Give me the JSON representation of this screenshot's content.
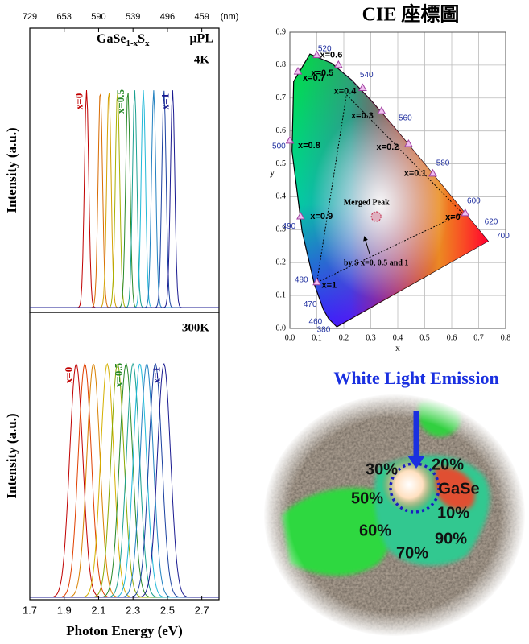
{
  "chart_data": [
    {
      "type": "line",
      "sample": [
        "GaSe",
        "1-x",
        "S",
        "x"
      ],
      "method": "μPL",
      "temperature": "4K",
      "ylabel": "Intensity (a.u.)",
      "xlim": [
        1.7,
        2.8
      ],
      "x2ticks": [
        {
          "value": 1.7,
          "label": "729"
        },
        {
          "value": 1.9,
          "label": "653"
        },
        {
          "value": 2.1,
          "label": "590"
        },
        {
          "value": 2.3,
          "label": "539"
        },
        {
          "value": 2.5,
          "label": "496"
        },
        {
          "value": 2.7,
          "label": "459"
        }
      ],
      "x2unit": "(nm)",
      "series": [
        {
          "color": "#c00000",
          "peak": 2.03,
          "fwhm": 0.03,
          "label": "x=0"
        },
        {
          "color": "#d86a00",
          "peak": 2.11,
          "fwhm": 0.03
        },
        {
          "color": "#d4a000",
          "peak": 2.16,
          "fwhm": 0.03
        },
        {
          "color": "#a8b000",
          "peak": 2.21,
          "fwhm": 0.03
        },
        {
          "color": "#2a8a2a",
          "peak": 2.27,
          "fwhm": 0.03,
          "label": "x=0.5"
        },
        {
          "color": "#1aa090",
          "peak": 2.31,
          "fwhm": 0.03
        },
        {
          "color": "#20b8d8",
          "peak": 2.36,
          "fwhm": 0.03
        },
        {
          "color": "#2080c0",
          "peak": 2.42,
          "fwhm": 0.03
        },
        {
          "color": "#1a40a0",
          "peak": 2.48,
          "fwhm": 0.03
        },
        {
          "color": "#1a1a90",
          "peak": 2.53,
          "fwhm": 0.03,
          "label": "x=1"
        }
      ]
    },
    {
      "type": "line",
      "temperature": "300K",
      "ylabel": "Intensity (a.u.)",
      "xlabel": "Photon Energy (eV)",
      "xlim": [
        1.7,
        2.8
      ],
      "xticks": [
        1.7,
        1.9,
        2.1,
        2.3,
        2.5,
        2.7
      ],
      "series": [
        {
          "color": "#c00000",
          "peak": 1.97,
          "fwhm": 0.09,
          "label": "x=0"
        },
        {
          "color": "#e04000",
          "peak": 2.02,
          "fwhm": 0.09
        },
        {
          "color": "#d88000",
          "peak": 2.07,
          "fwhm": 0.09
        },
        {
          "color": "#d4b000",
          "peak": 2.15,
          "fwhm": 0.09
        },
        {
          "color": "#8aa800",
          "peak": 2.21,
          "fwhm": 0.09
        },
        {
          "color": "#2a8a2a",
          "peak": 2.26,
          "fwhm": 0.09,
          "label": "x=0.5"
        },
        {
          "color": "#1aa090",
          "peak": 2.3,
          "fwhm": 0.09
        },
        {
          "color": "#20b8d8",
          "peak": 2.34,
          "fwhm": 0.09
        },
        {
          "color": "#2080c0",
          "peak": 2.38,
          "fwhm": 0.09
        },
        {
          "color": "#1a40a0",
          "peak": 2.43,
          "fwhm": 0.09
        },
        {
          "color": "#1a1a90",
          "peak": 2.48,
          "fwhm": 0.09,
          "label": "x=1"
        }
      ]
    },
    {
      "type": "scatter",
      "title": "CIE 座標圖",
      "xlabel": "x",
      "ylabel": "y",
      "xlim": [
        0,
        0.8
      ],
      "ylim": [
        0,
        0.9
      ],
      "xticks": [
        {
          "value": 0,
          "label": "0.0"
        },
        0.1,
        0.2,
        0.3,
        0.4,
        0.5,
        0.6,
        0.7,
        0.8
      ],
      "yticks": [
        {
          "value": 0,
          "label": "0.0"
        },
        0.1,
        0.2,
        0.3,
        0.4,
        0.5,
        0.6,
        0.7,
        0.8,
        0.9
      ],
      "locus": {
        "wavelengths": [
          "380",
          "460",
          "470",
          "480",
          "490",
          "500",
          null,
          "520",
          null,
          "540",
          null,
          "560",
          null,
          "580",
          null,
          "600",
          null,
          "620",
          "700"
        ],
        "x": [
          0.1741,
          0.144,
          0.1241,
          0.0913,
          0.0454,
          0.0082,
          0.0139,
          0.0743,
          0.1547,
          0.2296,
          0.3016,
          0.3731,
          0.4441,
          0.5125,
          0.5752,
          0.627,
          0.6658,
          0.6915,
          0.7347
        ],
        "y": [
          0.005,
          0.0297,
          0.0578,
          0.1327,
          0.295,
          0.5384,
          0.7502,
          0.8338,
          0.8059,
          0.7543,
          0.6923,
          0.6245,
          0.5547,
          0.4866,
          0.4242,
          0.3725,
          0.334,
          0.3083,
          0.2653
        ]
      },
      "compositions": {
        "labels": [
          "x=0",
          "x=0.1",
          "x=0.2",
          "x=0.3",
          "x=0.4",
          "x=0.5",
          "x=0.6",
          "x=0.7",
          "x=0.8",
          "x=0.9",
          "x=1"
        ],
        "x": [
          0.65,
          0.53,
          0.44,
          0.34,
          0.27,
          0.18,
          0.1,
          0.03,
          0.0,
          0.04,
          0.1
        ],
        "y": [
          0.35,
          0.47,
          0.56,
          0.66,
          0.73,
          0.8,
          0.83,
          0.78,
          0.57,
          0.34,
          0.14
        ]
      },
      "gamut": {
        "x": [
          0.1,
          0.21,
          0.64
        ],
        "y": [
          0.14,
          0.71,
          0.35
        ]
      },
      "merged_peak": {
        "label": "Merged Peak",
        "x": 0.32,
        "y": 0.34
      },
      "annotation": "by S x=0, 0.5 and 1"
    }
  ],
  "photo": {
    "title": "White Light Emission",
    "labels": [
      "30%",
      "20%",
      "GaSe",
      "50%",
      "10%",
      "60%",
      "90%",
      "70%"
    ]
  }
}
